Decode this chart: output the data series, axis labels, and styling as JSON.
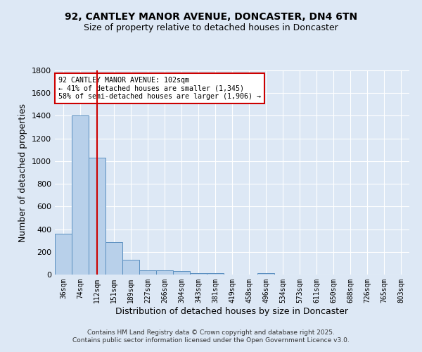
{
  "title1": "92, CANTLEY MANOR AVENUE, DONCASTER, DN4 6TN",
  "title2": "Size of property relative to detached houses in Doncaster",
  "xlabel": "Distribution of detached houses by size in Doncaster",
  "ylabel": "Number of detached properties",
  "categories": [
    "36sqm",
    "74sqm",
    "112sqm",
    "151sqm",
    "189sqm",
    "227sqm",
    "266sqm",
    "304sqm",
    "343sqm",
    "381sqm",
    "419sqm",
    "458sqm",
    "496sqm",
    "534sqm",
    "573sqm",
    "611sqm",
    "650sqm",
    "688sqm",
    "726sqm",
    "765sqm",
    "803sqm"
  ],
  "values": [
    360,
    1400,
    1030,
    285,
    130,
    40,
    40,
    30,
    15,
    10,
    0,
    0,
    10,
    0,
    0,
    0,
    0,
    0,
    0,
    0,
    0
  ],
  "bar_color": "#b8d0ea",
  "bar_edge_color": "#5a8fc0",
  "vline_color": "#cc0000",
  "vline_pos": 2.5,
  "annotation_text": "92 CANTLEY MANOR AVENUE: 102sqm\n← 41% of detached houses are smaller (1,345)\n58% of semi-detached houses are larger (1,906) →",
  "annotation_box_color": "#ffffff",
  "annotation_box_edge": "#cc0000",
  "ylim": [
    0,
    1800
  ],
  "yticks": [
    0,
    200,
    400,
    600,
    800,
    1000,
    1200,
    1400,
    1600,
    1800
  ],
  "bg_color": "#dde8f5",
  "plot_bg_color": "#dde8f5",
  "grid_color": "#ffffff",
  "footer1": "Contains HM Land Registry data © Crown copyright and database right 2025.",
  "footer2": "Contains public sector information licensed under the Open Government Licence v3.0."
}
